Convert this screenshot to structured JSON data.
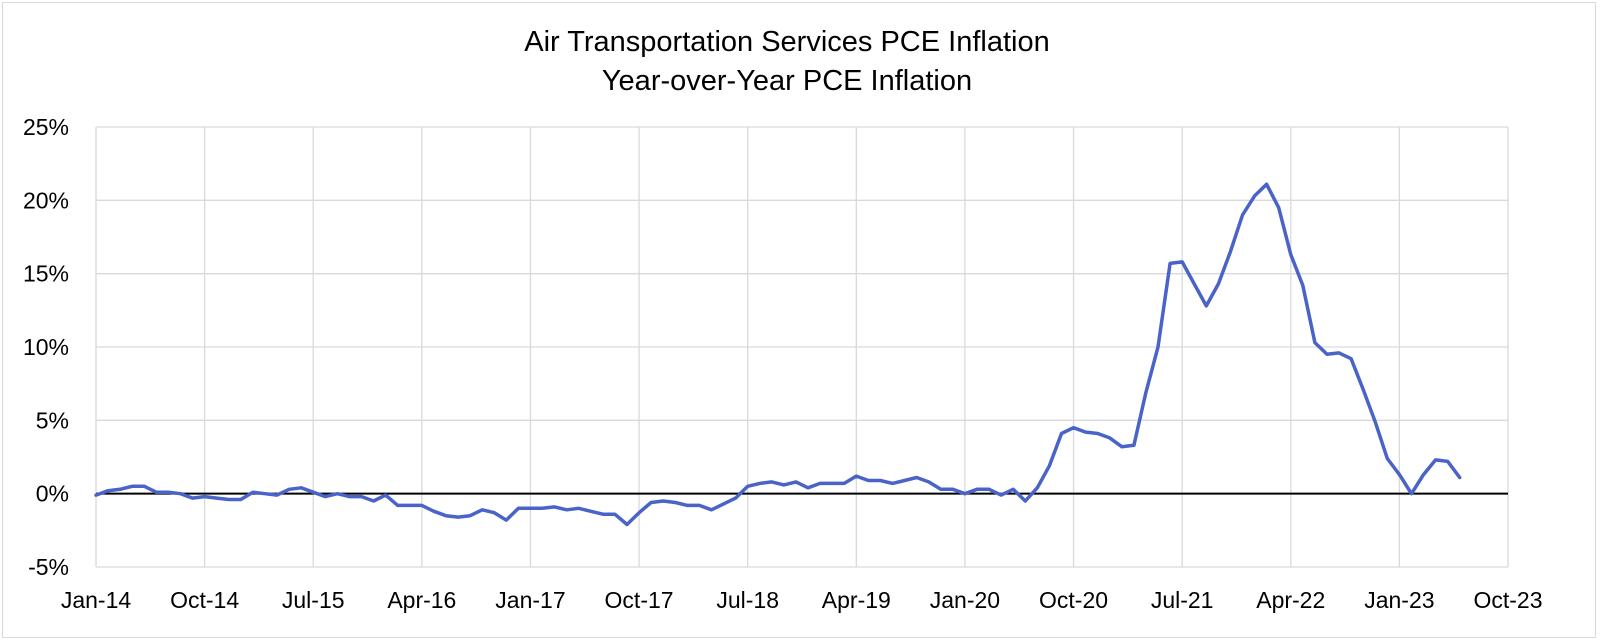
{
  "chart_data": {
    "type": "line",
    "title": "Air Transportation Services PCE Inflation",
    "subtitle": "Year-over-Year PCE Inflation",
    "xlabel": "",
    "ylabel": "",
    "x_start": "2014-01",
    "x_end": "2023-10",
    "x_ticks": [
      "Jan-14",
      "Oct-14",
      "Jul-15",
      "Apr-16",
      "Jan-17",
      "Oct-17",
      "Jul-18",
      "Apr-19",
      "Jan-20",
      "Oct-20",
      "Jul-21",
      "Apr-22",
      "Jan-23",
      "Oct-23"
    ],
    "y_ticks": [
      "-5%",
      "0%",
      "5%",
      "10%",
      "15%",
      "20%",
      "25%"
    ],
    "ylim": [
      -5,
      25
    ],
    "grid": true,
    "legend": "none",
    "series": [
      {
        "color": "#4a63c8",
        "x": [
          "2014-01",
          "2014-02",
          "2014-03",
          "2014-04",
          "2014-05",
          "2014-06",
          "2014-07",
          "2014-08",
          "2014-09",
          "2014-10",
          "2014-11",
          "2014-12",
          "2015-01",
          "2015-02",
          "2015-03",
          "2015-04",
          "2015-05",
          "2015-06",
          "2015-07",
          "2015-08",
          "2015-09",
          "2015-10",
          "2015-11",
          "2015-12",
          "2016-01",
          "2016-02",
          "2016-03",
          "2016-04",
          "2016-05",
          "2016-06",
          "2016-07",
          "2016-08",
          "2016-09",
          "2016-10",
          "2016-11",
          "2016-12",
          "2017-01",
          "2017-02",
          "2017-03",
          "2017-04",
          "2017-05",
          "2017-06",
          "2017-07",
          "2017-08",
          "2017-09",
          "2017-10",
          "2017-11",
          "2017-12",
          "2018-01",
          "2018-02",
          "2018-03",
          "2018-04",
          "2018-05",
          "2018-06",
          "2018-07",
          "2018-08",
          "2018-09",
          "2018-10",
          "2018-11",
          "2018-12",
          "2019-01",
          "2019-02",
          "2019-03",
          "2019-04",
          "2019-05",
          "2019-06",
          "2019-07",
          "2019-08",
          "2019-09",
          "2019-10",
          "2019-11",
          "2019-12",
          "2020-01",
          "2020-02",
          "2020-03",
          "2020-04",
          "2020-05",
          "2020-06",
          "2020-07",
          "2020-08",
          "2020-09",
          "2020-10",
          "2020-11",
          "2020-12",
          "2021-01",
          "2021-02",
          "2021-03",
          "2021-04",
          "2021-05",
          "2021-06",
          "2021-07",
          "2021-08",
          "2021-09",
          "2021-10",
          "2021-11",
          "2021-12",
          "2022-01",
          "2022-02",
          "2022-03",
          "2022-04",
          "2022-05",
          "2022-06",
          "2022-07",
          "2022-08",
          "2022-09",
          "2022-10",
          "2022-11",
          "2022-12",
          "2023-01",
          "2023-02",
          "2023-03",
          "2023-04",
          "2023-05",
          "2023-06"
        ],
        "values": [
          -0.1,
          0.2,
          0.3,
          0.5,
          0.5,
          0.1,
          0.1,
          0.0,
          -0.3,
          -0.2,
          -0.3,
          -0.4,
          -0.4,
          0.1,
          0.0,
          -0.1,
          0.3,
          0.4,
          0.1,
          -0.2,
          0.0,
          -0.2,
          -0.2,
          -0.5,
          -0.1,
          -0.8,
          -0.8,
          -0.8,
          -1.2,
          -1.5,
          -1.6,
          -1.5,
          -1.1,
          -1.3,
          -1.8,
          -1.0,
          -1.0,
          -1.0,
          -0.9,
          -1.1,
          -1.0,
          -1.2,
          -1.4,
          -1.4,
          -2.1,
          -1.3,
          -0.6,
          -0.5,
          -0.6,
          -0.8,
          -0.8,
          -1.1,
          -0.7,
          -0.3,
          0.5,
          0.7,
          0.8,
          0.6,
          0.8,
          0.4,
          0.7,
          0.7,
          0.7,
          1.2,
          0.9,
          0.9,
          0.7,
          0.9,
          1.1,
          0.8,
          0.3,
          0.3,
          0.0,
          0.3,
          0.3,
          -0.1,
          0.3,
          -0.5,
          0.4,
          1.9,
          4.1,
          4.5,
          4.2,
          4.1,
          3.8,
          3.2,
          3.3,
          6.9,
          10.0,
          15.7,
          15.8,
          14.3,
          12.8,
          14.3,
          16.5,
          19.0,
          20.3,
          21.1,
          19.5,
          16.3,
          14.2,
          10.3,
          9.5,
          9.6,
          9.2,
          7.1,
          4.9,
          2.4,
          1.3,
          0.0,
          1.3,
          2.3,
          2.2,
          1.1
        ]
      }
    ]
  }
}
